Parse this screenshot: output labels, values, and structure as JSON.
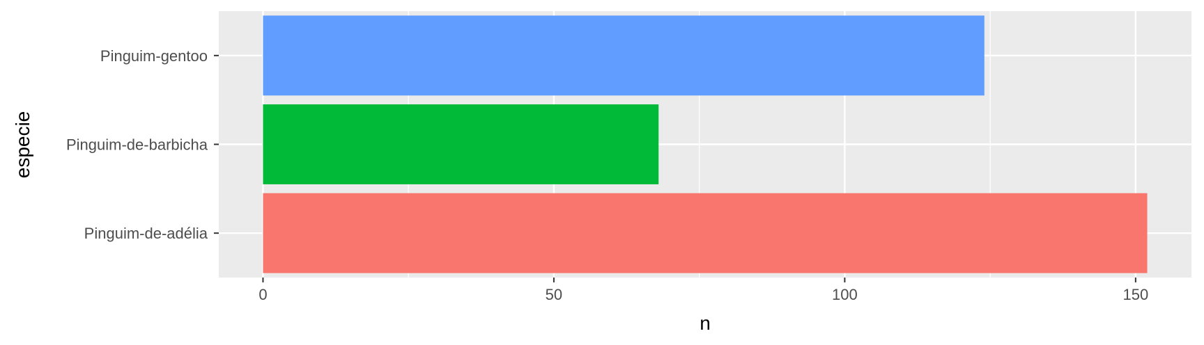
{
  "chart_data": {
    "type": "bar",
    "orientation": "horizontal",
    "xlabel": "n",
    "ylabel": "especie",
    "categories": [
      "Pinguim-de-adélia",
      "Pinguim-de-barbicha",
      "Pinguim-gentoo"
    ],
    "values": [
      152,
      68,
      124
    ],
    "colors": [
      "#F8766D",
      "#00BA38",
      "#619CFF"
    ],
    "xlim": [
      -7.6,
      159.6
    ],
    "x_ticks": [
      0,
      50,
      100,
      150
    ],
    "grid": true,
    "legend": "none",
    "panel_background": "#EBEBEB"
  }
}
